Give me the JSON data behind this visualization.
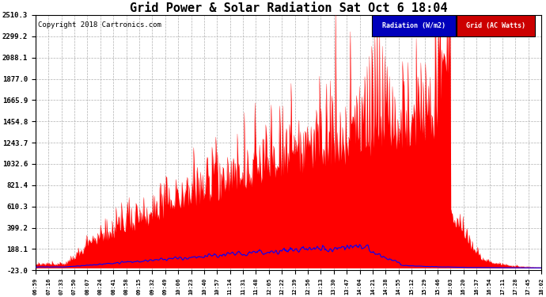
{
  "title": "Grid Power & Solar Radiation Sat Oct 6 18:04",
  "copyright": "Copyright 2018 Cartronics.com",
  "legend_labels": [
    "Radiation (W/m2)",
    "Grid (AC Watts)"
  ],
  "legend_bg_blue": "#0000bb",
  "legend_bg_red": "#cc0000",
  "ymin": -23.0,
  "ymax": 2510.3,
  "yticks": [
    2510.3,
    2299.2,
    2088.1,
    1877.0,
    1665.9,
    1454.8,
    1243.7,
    1032.6,
    821.4,
    610.3,
    399.2,
    188.1,
    -23.0
  ],
  "background_color": "#ffffff",
  "grid_color": "#b0b0b0",
  "plot_bg_color": "#ffffff",
  "x_labels": [
    "06:59",
    "07:16",
    "07:33",
    "07:50",
    "08:07",
    "08:24",
    "08:41",
    "08:58",
    "09:15",
    "09:32",
    "09:49",
    "10:06",
    "10:23",
    "10:40",
    "10:57",
    "11:14",
    "11:31",
    "11:48",
    "12:05",
    "12:22",
    "12:39",
    "12:56",
    "13:13",
    "13:30",
    "13:47",
    "14:04",
    "14:21",
    "14:38",
    "14:55",
    "15:12",
    "15:29",
    "15:46",
    "16:03",
    "16:20",
    "16:37",
    "16:54",
    "17:11",
    "17:28",
    "17:45",
    "18:02"
  ]
}
